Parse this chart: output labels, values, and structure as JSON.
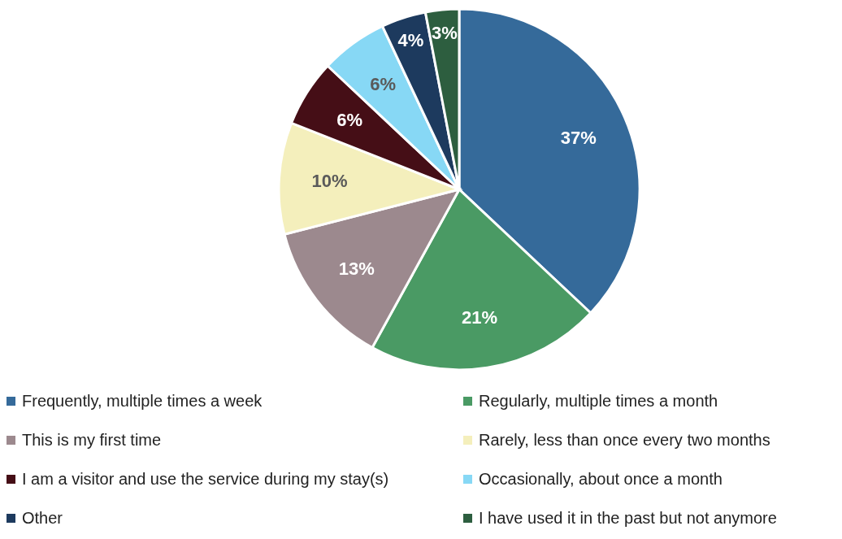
{
  "chart_data": {
    "type": "pie",
    "categories": [
      "Frequently, multiple times a week",
      "Regularly, multiple times a month",
      "This is my first time",
      "Rarely, less than once every two months",
      "I am a visitor and use the service during my stay(s)",
      "Occasionally, about once a month",
      "Other",
      "I have used it in the past but not anymore"
    ],
    "values": [
      37,
      21,
      13,
      10,
      6,
      6,
      4,
      3
    ],
    "value_labels": [
      "37%",
      "21%",
      "13%",
      "10%",
      "6%",
      "6%",
      "4%",
      "3%"
    ],
    "colors": [
      "#356a9a",
      "#4a9a64",
      "#9c898e",
      "#f4efbc",
      "#450e16",
      "#87d8f5",
      "#1d3a5e",
      "#2d5e3f"
    ],
    "legend": "bottom"
  }
}
